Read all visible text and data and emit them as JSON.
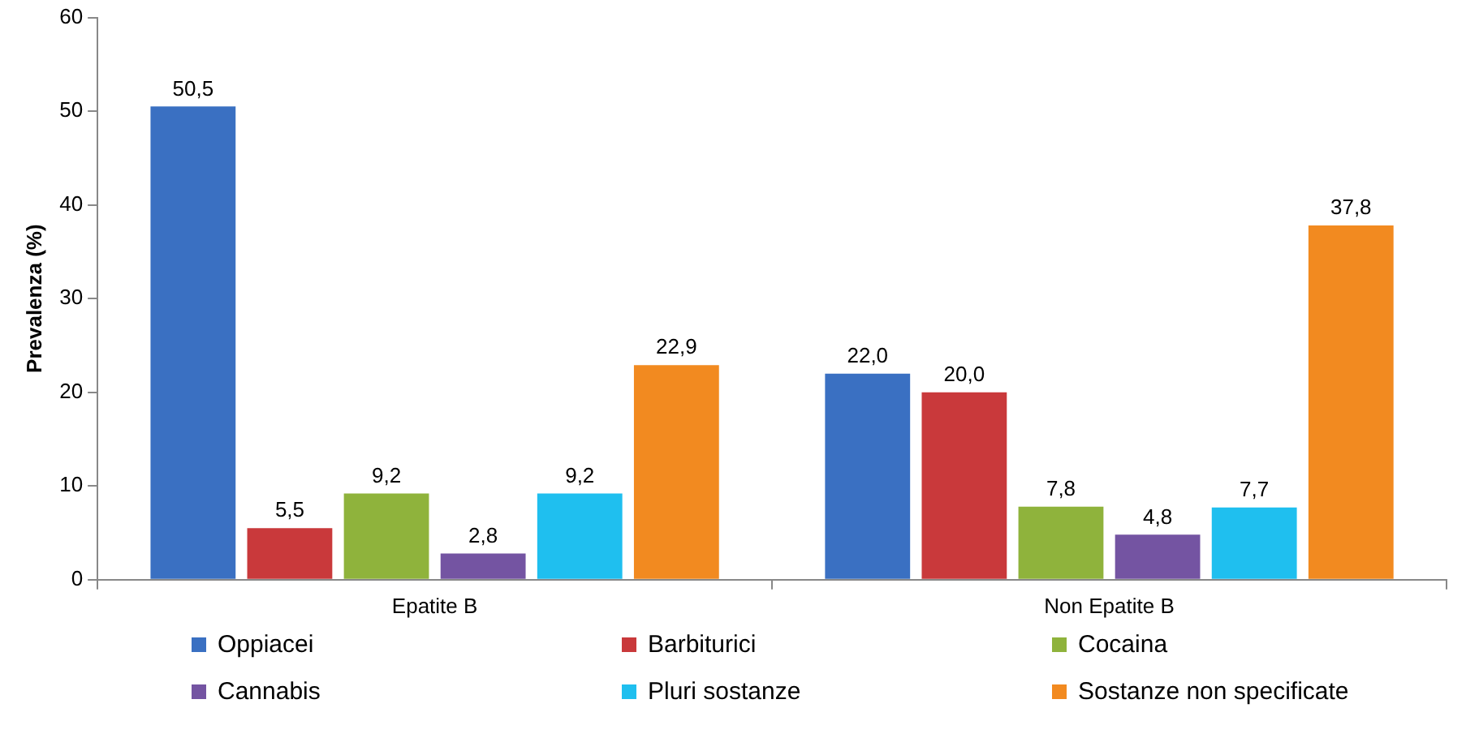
{
  "chart_data": {
    "type": "bar",
    "ylabel": "Prevalenza (%)",
    "categories": [
      "Epatite B",
      "Non Epatite B"
    ],
    "series": [
      {
        "name": "Oppiacei",
        "color": "#3a70c2",
        "values": [
          50.5,
          22.0
        ],
        "value_labels": [
          "50,5",
          "22,0"
        ]
      },
      {
        "name": "Barbiturici",
        "color": "#c9393b",
        "values": [
          5.5,
          20.0
        ],
        "value_labels": [
          "5,5",
          "20,0"
        ]
      },
      {
        "name": "Cocaina",
        "color": "#8fb33c",
        "values": [
          9.2,
          7.8
        ],
        "value_labels": [
          "9,2",
          "7,8"
        ]
      },
      {
        "name": "Cannabis",
        "color": "#7454a2",
        "values": [
          2.8,
          4.8
        ],
        "value_labels": [
          "2,8",
          "4,8"
        ]
      },
      {
        "name": "Pluri sostanze",
        "color": "#1fbfef",
        "values": [
          9.2,
          7.7
        ],
        "value_labels": [
          "9,2",
          "7,7"
        ]
      },
      {
        "name": "Sostanze non specificate",
        "color": "#f28a20",
        "values": [
          22.9,
          37.8
        ],
        "value_labels": [
          "22,9",
          "37,8"
        ]
      }
    ],
    "ylim": [
      0,
      60
    ],
    "yticks": [
      0,
      10,
      20,
      30,
      40,
      50,
      60
    ],
    "grid": false,
    "legend": "bottom"
  }
}
